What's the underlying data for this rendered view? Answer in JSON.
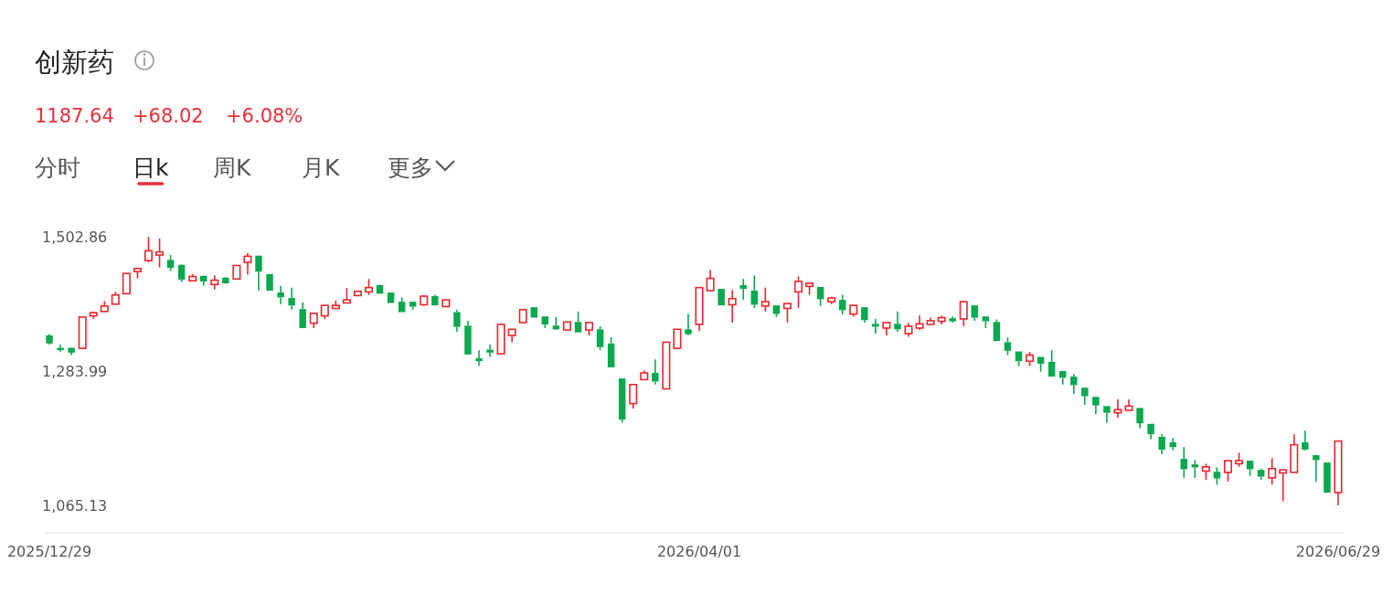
{
  "chart_data": {
    "type": "candlestick",
    "title": "创新药",
    "annotations": [
      "1187.64",
      "+68.02",
      "+6.08%",
      "分时",
      "日k",
      "周K",
      "月K",
      "更多"
    ],
    "categories": [
      "2025/12/29",
      null,
      null,
      null,
      null,
      null,
      null,
      null,
      null,
      null,
      null,
      null,
      null,
      null,
      null,
      null,
      null,
      null,
      null,
      null,
      null,
      null,
      null,
      null,
      null,
      null,
      null,
      null,
      null,
      null,
      null,
      null,
      null,
      null,
      null,
      null,
      null,
      null,
      null,
      null,
      null,
      null,
      null,
      null,
      null,
      null,
      null,
      null,
      null,
      null,
      null,
      null,
      null,
      null,
      null,
      null,
      null,
      null,
      null,
      "2026/04/01",
      null,
      null,
      null,
      null,
      null,
      null,
      null,
      null,
      null,
      null,
      null,
      null,
      null,
      null,
      null,
      null,
      null,
      null,
      null,
      null,
      null,
      null,
      null,
      null,
      null,
      null,
      null,
      null,
      null,
      null,
      null,
      null,
      null,
      null,
      null,
      null,
      null,
      null,
      null,
      null,
      null,
      null,
      null,
      null,
      null,
      null,
      null,
      null,
      null,
      null,
      null,
      null,
      null,
      null,
      null,
      null,
      null,
      "2026/06/29"
    ],
    "ohlc": [
      [
        1342,
        1344,
        1327,
        1329
      ],
      [
        1322,
        1327,
        1315,
        1318
      ],
      [
        1322,
        1322,
        1310,
        1314
      ],
      [
        1321,
        1372,
        1321,
        1372
      ],
      [
        1374,
        1381,
        1369,
        1379
      ],
      [
        1381,
        1398,
        1381,
        1390
      ],
      [
        1393,
        1413,
        1393,
        1408
      ],
      [
        1410,
        1443,
        1410,
        1443
      ],
      [
        1446,
        1452,
        1435,
        1451
      ],
      [
        1464,
        1502.86,
        1461,
        1480
      ],
      [
        1473,
        1500,
        1453,
        1478
      ],
      [
        1465,
        1473,
        1447,
        1452
      ],
      [
        1457,
        1458,
        1429,
        1433
      ],
      [
        1431,
        1442,
        1430,
        1438
      ],
      [
        1439,
        1440,
        1423,
        1430
      ],
      [
        1425,
        1440,
        1417,
        1432
      ],
      [
        1436,
        1437,
        1426,
        1427
      ],
      [
        1434,
        1456,
        1434,
        1456
      ],
      [
        1461,
        1476,
        1441,
        1471
      ],
      [
        1472,
        1472,
        1415,
        1446
      ],
      [
        1442,
        1442,
        1415,
        1415
      ],
      [
        1412,
        1423,
        1393,
        1404
      ],
      [
        1403,
        1420,
        1384,
        1391
      ],
      [
        1385,
        1396,
        1354,
        1354
      ],
      [
        1362,
        1378,
        1354,
        1378
      ],
      [
        1374,
        1392,
        1369,
        1391
      ],
      [
        1386,
        1399,
        1386,
        1391
      ],
      [
        1395,
        1419,
        1395,
        1400
      ],
      [
        1407,
        1415,
        1406,
        1414
      ],
      [
        1413,
        1434,
        1408,
        1420
      ],
      [
        1424,
        1425,
        1410,
        1410
      ],
      [
        1412,
        1412,
        1395,
        1395
      ],
      [
        1397,
        1404,
        1380,
        1380
      ],
      [
        1397,
        1397,
        1384,
        1389
      ],
      [
        1392,
        1407,
        1390,
        1406
      ],
      [
        1406,
        1408,
        1391,
        1391
      ],
      [
        1389,
        1400,
        1389,
        1400
      ],
      [
        1380,
        1384,
        1348,
        1356
      ],
      [
        1358,
        1366,
        1311,
        1311
      ],
      [
        1305,
        1318,
        1292,
        1300
      ],
      [
        1319,
        1327,
        1307,
        1314
      ],
      [
        1312,
        1360,
        1312,
        1360
      ],
      [
        1342,
        1352,
        1331,
        1352
      ],
      [
        1363,
        1384,
        1363,
        1384
      ],
      [
        1388,
        1388,
        1371,
        1371
      ],
      [
        1373,
        1373,
        1354,
        1360
      ],
      [
        1358,
        1372,
        1351,
        1352
      ],
      [
        1351,
        1364,
        1351,
        1364
      ],
      [
        1364,
        1381,
        1347,
        1347
      ],
      [
        1351,
        1363,
        1342,
        1363
      ],
      [
        1352,
        1357,
        1318,
        1323
      ],
      [
        1329,
        1339,
        1290,
        1290
      ],
      [
        1272,
        1272,
        1200,
        1205
      ],
      [
        1231,
        1262,
        1223,
        1262
      ],
      [
        1270,
        1285,
        1270,
        1281
      ],
      [
        1281,
        1303,
        1262,
        1267
      ],
      [
        1255,
        1331,
        1255,
        1331
      ],
      [
        1321,
        1352,
        1321,
        1352
      ],
      [
        1352,
        1377,
        1342,
        1344
      ],
      [
        1360,
        1420,
        1349,
        1420
      ],
      [
        1415,
        1449,
        1415,
        1435
      ],
      [
        1418,
        1418,
        1391,
        1391
      ],
      [
        1392,
        1416,
        1363,
        1402
      ],
      [
        1424,
        1434,
        1400,
        1418
      ],
      [
        1415,
        1440,
        1387,
        1392
      ],
      [
        1390,
        1420,
        1381,
        1397
      ],
      [
        1391,
        1391,
        1372,
        1377
      ],
      [
        1386,
        1394,
        1363,
        1394
      ],
      [
        1413,
        1438,
        1387,
        1430
      ],
      [
        1422,
        1428,
        1408,
        1427
      ],
      [
        1421,
        1421,
        1390,
        1401
      ],
      [
        1397,
        1405,
        1393,
        1403
      ],
      [
        1400,
        1408,
        1376,
        1383
      ],
      [
        1377,
        1391,
        1373,
        1391
      ],
      [
        1388,
        1388,
        1363,
        1367
      ],
      [
        1361,
        1369,
        1345,
        1356
      ],
      [
        1354,
        1363,
        1342,
        1363
      ],
      [
        1361,
        1381,
        1348,
        1352
      ],
      [
        1345,
        1362,
        1340,
        1357
      ],
      [
        1354,
        1375,
        1351,
        1361
      ],
      [
        1360,
        1371,
        1360,
        1366
      ],
      [
        1365,
        1374,
        1360,
        1371
      ],
      [
        1370,
        1373,
        1363,
        1365
      ],
      [
        1369,
        1398,
        1357,
        1397
      ],
      [
        1391,
        1391,
        1366,
        1371
      ],
      [
        1373,
        1373,
        1354,
        1365
      ],
      [
        1364,
        1368,
        1333,
        1333
      ],
      [
        1331,
        1339,
        1310,
        1317
      ],
      [
        1316,
        1316,
        1292,
        1300
      ],
      [
        1300,
        1315,
        1292,
        1310
      ],
      [
        1307,
        1307,
        1283,
        1296
      ],
      [
        1299,
        1318,
        1275,
        1275
      ],
      [
        1284,
        1284,
        1262,
        1273
      ],
      [
        1275,
        1279,
        1247,
        1261
      ],
      [
        1257,
        1257,
        1229,
        1243
      ],
      [
        1242,
        1242,
        1214,
        1228
      ],
      [
        1227,
        1227,
        1200,
        1216
      ],
      [
        1216,
        1238,
        1208,
        1221
      ],
      [
        1220,
        1238,
        1220,
        1227
      ],
      [
        1224,
        1224,
        1191,
        1199
      ],
      [
        1198,
        1198,
        1173,
        1181
      ],
      [
        1177,
        1181,
        1149,
        1156
      ],
      [
        1168,
        1175,
        1155,
        1160
      ],
      [
        1141,
        1160,
        1110,
        1124
      ],
      [
        1132,
        1139,
        1110,
        1127
      ],
      [
        1121,
        1133,
        1107,
        1128
      ],
      [
        1120,
        1127,
        1099,
        1109
      ],
      [
        1119,
        1138,
        1104,
        1138
      ],
      [
        1133,
        1151,
        1128,
        1138
      ],
      [
        1138,
        1138,
        1113,
        1124
      ],
      [
        1123,
        1125,
        1107,
        1112
      ],
      [
        1110,
        1142,
        1099,
        1125
      ],
      [
        1118,
        1123,
        1072,
        1123
      ],
      [
        1119,
        1181,
        1119,
        1164
      ],
      [
        1168,
        1187,
        1155,
        1156
      ],
      [
        1147,
        1147,
        1104,
        1139
      ],
      [
        1135,
        1135,
        1086,
        1086
      ],
      [
        1086,
        1170,
        1065.13,
        1170
      ]
    ],
    "ylim": [
      1065.13,
      1502.86
    ],
    "yticks": [
      {
        "value": 1502.86,
        "label": "1,502.86"
      },
      {
        "value": 1283.99,
        "label": "1,283.99"
      },
      {
        "value": 1065.13,
        "label": "1,065.13"
      }
    ],
    "grid": false
  }
}
